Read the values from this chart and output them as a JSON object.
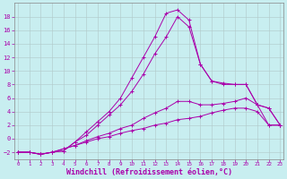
{
  "background_color": "#c8eef0",
  "grid_color": "#b0c8c8",
  "line_color": "#aa00aa",
  "xlabel": "Windchill (Refroidissement éolien,°C)",
  "xlabel_fontsize": 6.0,
  "ylabel_ticks": [
    -2,
    0,
    2,
    4,
    6,
    8,
    10,
    12,
    14,
    16,
    18
  ],
  "xtick_labels": [
    "0",
    "1",
    "2",
    "3",
    "4",
    "5",
    "6",
    "7",
    "8",
    "9",
    "10",
    "11",
    "12",
    "13",
    "14",
    "15",
    "16",
    "17",
    "18",
    "19",
    "20",
    "21",
    "22",
    "23"
  ],
  "xlim": [
    -0.3,
    23.3
  ],
  "ylim": [
    -3.0,
    20.0
  ],
  "series": [
    {
      "x": [
        0,
        1,
        2,
        3,
        4,
        5,
        6,
        7,
        8,
        9,
        10,
        11,
        12,
        13,
        14,
        15,
        16,
        17,
        18,
        19,
        20,
        21,
        22,
        23
      ],
      "y": [
        -2,
        -2,
        -2.3,
        -2,
        -1.8,
        -0.5,
        1,
        2.5,
        4,
        6,
        9,
        12,
        15,
        18.5,
        19,
        17.5,
        11,
        8.5,
        8.2,
        8,
        8,
        5,
        4.5,
        2
      ]
    },
    {
      "x": [
        0,
        1,
        2,
        3,
        4,
        5,
        6,
        7,
        8,
        9,
        10,
        11,
        12,
        13,
        14,
        15,
        16,
        17,
        18,
        19,
        20,
        21,
        22,
        23
      ],
      "y": [
        -2,
        -2,
        -2.3,
        -2,
        -1.8,
        -0.5,
        0.5,
        2,
        3.5,
        5,
        7,
        9.5,
        12.5,
        15,
        18,
        16.5,
        11,
        8.5,
        8,
        8,
        8,
        5,
        4.5,
        2
      ]
    },
    {
      "x": [
        0,
        1,
        2,
        3,
        4,
        5,
        6,
        7,
        8,
        9,
        10,
        11,
        12,
        13,
        14,
        15,
        16,
        17,
        18,
        19,
        20,
        21,
        22,
        23
      ],
      "y": [
        -2,
        -2,
        -2.3,
        -2,
        -1.5,
        -1,
        -0.3,
        0.3,
        0.8,
        1.5,
        2,
        3,
        3.8,
        4.5,
        5.5,
        5.5,
        5,
        5,
        5.2,
        5.5,
        6,
        5,
        2,
        2
      ]
    },
    {
      "x": [
        0,
        1,
        2,
        3,
        4,
        5,
        6,
        7,
        8,
        9,
        10,
        11,
        12,
        13,
        14,
        15,
        16,
        17,
        18,
        19,
        20,
        21,
        22,
        23
      ],
      "y": [
        -2,
        -2,
        -2.3,
        -2,
        -1.5,
        -1,
        -0.5,
        0,
        0.3,
        0.8,
        1.2,
        1.5,
        2,
        2.3,
        2.8,
        3,
        3.3,
        3.8,
        4.2,
        4.5,
        4.5,
        4,
        2,
        2
      ]
    }
  ]
}
